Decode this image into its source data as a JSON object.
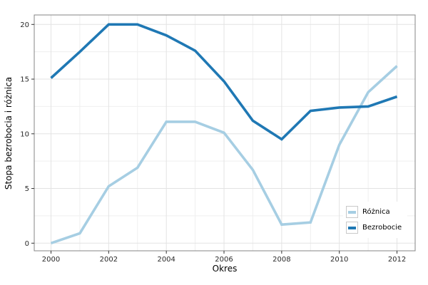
{
  "chart_data": {
    "type": "line",
    "title": "",
    "xlabel": "Okres",
    "ylabel": "Stopa bezrobocia i różnica",
    "x": [
      2000,
      2001,
      2002,
      2003,
      2004,
      2005,
      2006,
      2007,
      2008,
      2009,
      2010,
      2011,
      2012
    ],
    "series": [
      {
        "name": "Różnica",
        "color": "#a6cee3",
        "values": [
          0.0,
          0.9,
          5.2,
          6.9,
          11.1,
          11.1,
          10.1,
          6.7,
          1.7,
          1.9,
          9.0,
          13.8,
          16.2
        ]
      },
      {
        "name": "Bezrobocie",
        "color": "#1f78b4",
        "values": [
          15.1,
          17.5,
          20.0,
          20.0,
          19.0,
          17.6,
          14.8,
          11.2,
          9.5,
          12.1,
          12.4,
          12.5,
          13.4
        ]
      }
    ],
    "x_ticks": [
      2000,
      2002,
      2004,
      2006,
      2008,
      2010,
      2012
    ],
    "y_ticks": [
      0,
      5,
      10,
      15,
      20
    ],
    "xlim": [
      2000,
      2012
    ],
    "ylim": [
      0,
      20
    ],
    "grid": "on",
    "legend_position": "inside-bottom-right",
    "style": {
      "panel_border": "#848484",
      "grid_major": "#e3e3e3",
      "grid_minor": "#efefef",
      "tick_color": "#333333",
      "tick_label_color": "#2a2a2a",
      "background": "#ffffff"
    }
  }
}
